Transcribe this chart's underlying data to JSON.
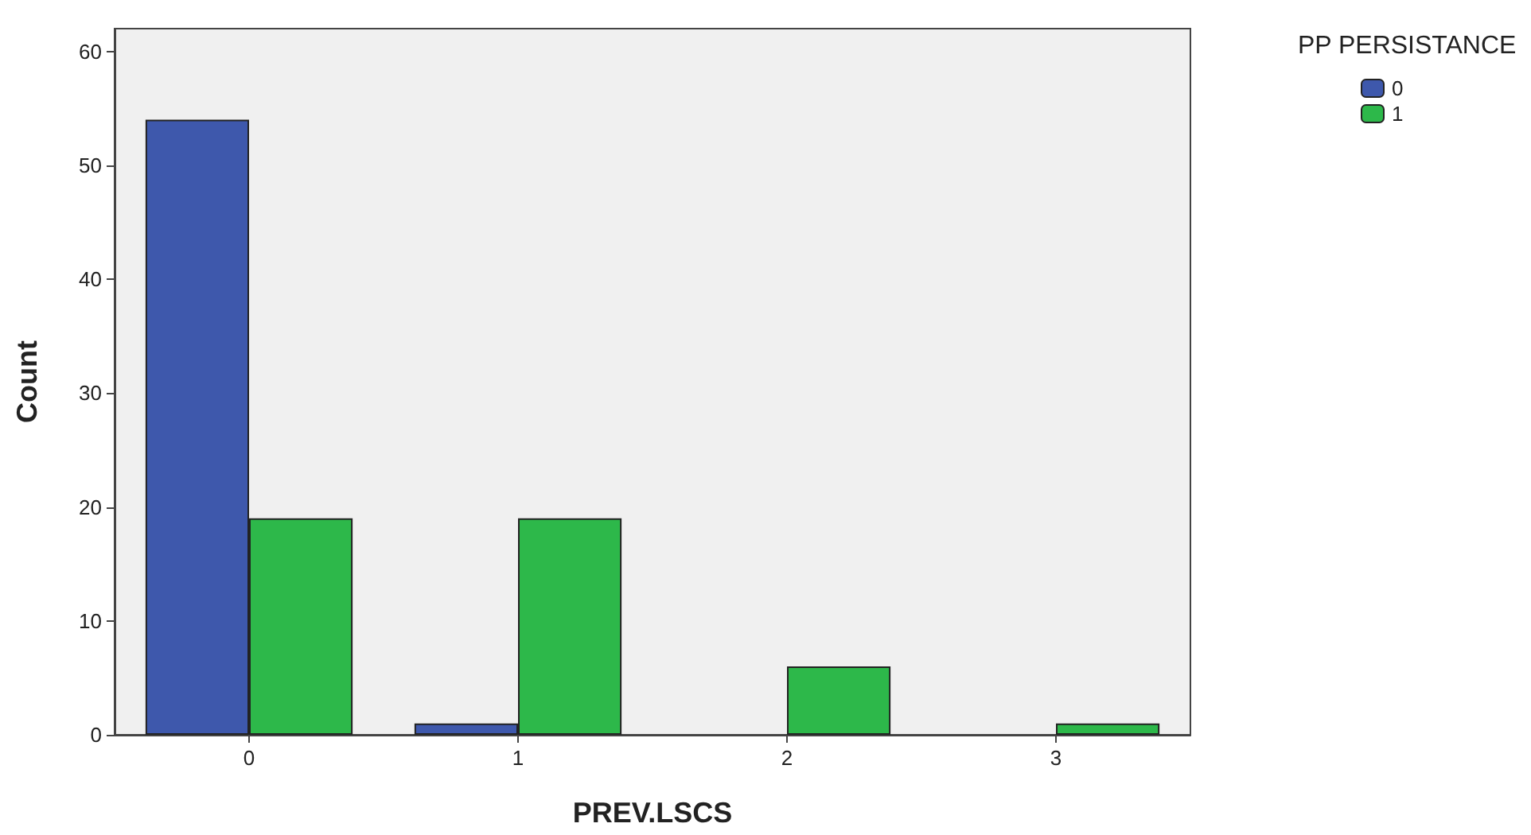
{
  "chart_data": {
    "type": "bar",
    "xlabel": "PREV.LSCS",
    "ylabel": "Count",
    "legend_title": "PP PERSISTANCE",
    "categories": [
      "0",
      "1",
      "2",
      "3"
    ],
    "series": [
      {
        "name": "0",
        "color": "#3e58ac",
        "values": [
          54,
          1,
          null,
          null
        ]
      },
      {
        "name": "1",
        "color": "#2db84a",
        "values": [
          19,
          19,
          6,
          1
        ]
      }
    ],
    "ylim": [
      0,
      62
    ],
    "yticks": [
      0,
      10,
      20,
      30,
      40,
      50,
      60
    ],
    "grid": false,
    "legend": "top right"
  }
}
